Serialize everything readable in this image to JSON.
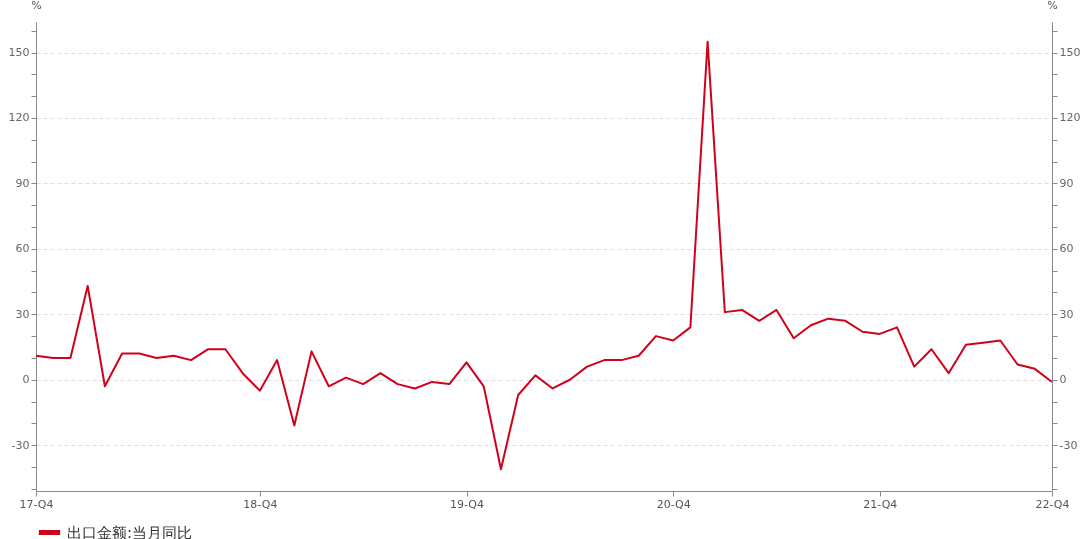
{
  "chart_data": {
    "type": "line",
    "ylabel": "%",
    "y2label": "%",
    "categories": [
      "17-Q4",
      null,
      null,
      null,
      null,
      null,
      null,
      null,
      null,
      null,
      null,
      null,
      null,
      "18-Q4",
      null,
      null,
      null,
      null,
      null,
      null,
      null,
      null,
      null,
      null,
      null,
      "19-Q4",
      null,
      null,
      null,
      null,
      null,
      null,
      null,
      null,
      null,
      null,
      null,
      "20-Q4",
      null,
      null,
      null,
      null,
      null,
      null,
      null,
      null,
      null,
      null,
      null,
      "21-Q4",
      null,
      null,
      null,
      null,
      null,
      null,
      null,
      null,
      null,
      "22-Q4"
    ],
    "series": [
      {
        "name": "出口金额:当月同比",
        "color": "#d0021b",
        "values": [
          11,
          10,
          10,
          43,
          -3,
          12,
          12,
          10,
          11,
          9,
          14,
          14,
          3,
          -5,
          9,
          -21,
          13,
          -3,
          1,
          -2,
          3,
          -2,
          -4,
          -1,
          -2,
          8,
          -3,
          -41,
          -7,
          2,
          -4,
          0,
          6,
          9,
          9,
          11,
          20,
          18,
          24,
          155,
          31,
          32,
          27,
          32,
          19,
          25,
          28,
          27,
          22,
          21,
          24,
          6,
          14,
          3,
          16,
          17,
          18,
          7,
          5,
          -1
        ]
      }
    ],
    "ylim": [
      -51,
      164
    ],
    "yticks": [
      {
        "value": -50,
        "label": null
      },
      {
        "value": -40,
        "label": null
      },
      -30,
      {
        "value": -20,
        "label": null
      },
      {
        "value": -10,
        "label": null
      },
      0,
      {
        "value": 10,
        "label": null
      },
      {
        "value": 20,
        "label": null
      },
      30,
      {
        "value": 40,
        "label": null
      },
      {
        "value": 50,
        "label": null
      },
      60,
      {
        "value": 70,
        "label": null
      },
      {
        "value": 80,
        "label": null
      },
      90,
      {
        "value": 100,
        "label": null
      },
      {
        "value": 110,
        "label": null
      },
      120,
      {
        "value": 130,
        "label": null
      },
      {
        "value": 140,
        "label": null
      },
      150,
      {
        "value": 160,
        "label": null
      }
    ],
    "y2lim": [
      -51,
      164
    ],
    "y2ticks": [
      {
        "value": -50,
        "label": null
      },
      {
        "value": -40,
        "label": null
      },
      -30,
      {
        "value": -20,
        "label": null
      },
      {
        "value": -10,
        "label": null
      },
      0,
      {
        "value": 10,
        "label": null
      },
      {
        "value": 20,
        "label": null
      },
      30,
      {
        "value": 40,
        "label": null
      },
      {
        "value": 50,
        "label": null
      },
      60,
      {
        "value": 70,
        "label": null
      },
      {
        "value": 80,
        "label": null
      },
      90,
      {
        "value": 100,
        "label": null
      },
      {
        "value": 110,
        "label": null
      },
      120,
      {
        "value": 130,
        "label": null
      },
      {
        "value": 140,
        "label": null
      },
      150,
      {
        "value": 160,
        "label": null
      }
    ],
    "grid": "y",
    "legend": "bottom",
    "marker": "none",
    "line_style": "solid"
  }
}
